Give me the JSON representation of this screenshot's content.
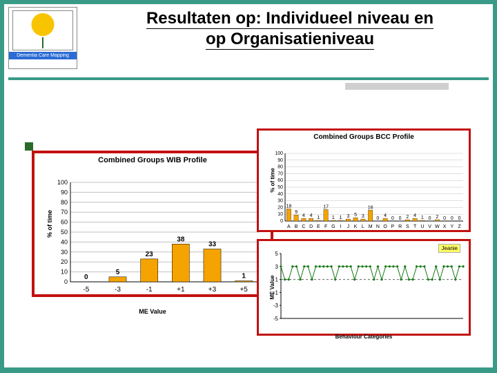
{
  "page": {
    "accent": "#3a9a88",
    "title_line1": "Resultaten op: Individueel niveau en",
    "title_line2": "op Organisatieniveau",
    "title_fontsize": 24
  },
  "logo": {
    "tag": "Dementia Care Mapping",
    "sub": ""
  },
  "wib_chart": {
    "type": "bar",
    "title": "Combined Groups WIB Profile",
    "title_fontsize": 11,
    "ylabel": "% of time",
    "xlabel": "ME Value",
    "label_fontsize": 9,
    "categories": [
      "-5",
      "-3",
      "-1",
      "+1",
      "+3",
      "+5"
    ],
    "values": [
      0,
      5,
      23,
      38,
      33,
      1
    ],
    "bar_color": "#f4a300",
    "value_label_color": "#000000",
    "ylim": [
      0,
      100
    ],
    "ytick_step": 10,
    "grid_color": "#c0c0c0",
    "bar_width": 0.55,
    "background_color": "#ffffff",
    "border_color": "#c21010"
  },
  "bcc_chart": {
    "type": "bar",
    "title": "Combined Groups BCC Profile",
    "title_fontsize": 10,
    "ylabel": "% of time",
    "xlabel": "Behaviour Categories",
    "categories": [
      "A",
      "B",
      "C",
      "D",
      "E",
      "F",
      "G",
      "I",
      "J",
      "K",
      "L",
      "M",
      "N",
      "O",
      "P",
      "R",
      "S",
      "T",
      "U",
      "V",
      "W",
      "X",
      "Y",
      "Z"
    ],
    "values": [
      18,
      9,
      4,
      4,
      1,
      17,
      1,
      1,
      3,
      5,
      3,
      16,
      0,
      4,
      0,
      0,
      2,
      4,
      1,
      0,
      2,
      0,
      0,
      0
    ],
    "bar_color": "#f4a300",
    "ylim": [
      0,
      100
    ],
    "ytick_step": 10,
    "grid_color": "#c0c0c0",
    "bar_width": 0.6,
    "border_color": "#c21010"
  },
  "line_chart": {
    "type": "line",
    "title": "",
    "legend_label": "Jeanie",
    "ylabel": "ME Value",
    "xlabel": "Behaviour Categories",
    "ylim": [
      -5,
      5
    ],
    "yticks": [
      -5,
      -3,
      -1,
      1,
      3,
      5
    ],
    "n_points": 48,
    "values": [
      3,
      1,
      1,
      3,
      3,
      1,
      3,
      3,
      1,
      3,
      3,
      3,
      3,
      3,
      1,
      3,
      3,
      3,
      3,
      1,
      3,
      3,
      3,
      3,
      1,
      3,
      1,
      3,
      3,
      3,
      3,
      1,
      3,
      1,
      1,
      3,
      3,
      3,
      1,
      1,
      3,
      1,
      3,
      3,
      3,
      1,
      3,
      3
    ],
    "dash_line_y": 1,
    "line_color": "#1a7a1a",
    "marker_color": "#1a7a1a",
    "marker_size": 3,
    "line_width": 1,
    "dash_color": "#606060",
    "border_color": "#c21010"
  }
}
